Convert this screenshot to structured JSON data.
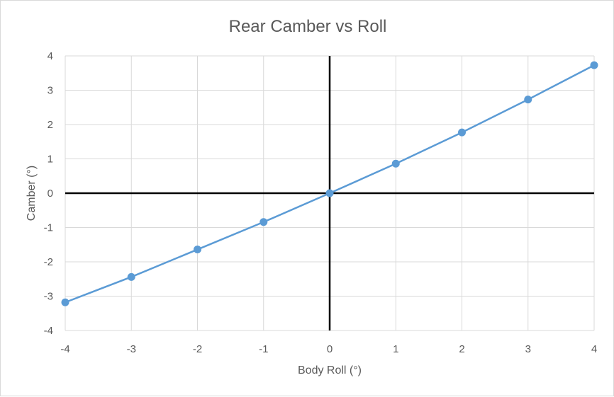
{
  "chart_data": {
    "type": "scatter",
    "title": "Rear Camber vs Roll",
    "xlabel": "Body Roll (°)",
    "ylabel": "Camber (°)",
    "xlim": [
      -4,
      4
    ],
    "ylim": [
      -4,
      4
    ],
    "x_ticks": [
      "-4",
      "-3",
      "-2",
      "-1",
      "0",
      "1",
      "2",
      "3",
      "4"
    ],
    "y_ticks": [
      "-4",
      "-3",
      "-2",
      "-1",
      "0",
      "1",
      "2",
      "3",
      "4"
    ],
    "grid": true,
    "legend": "none",
    "series": [
      {
        "color": "#5b9bd5",
        "x": [
          -4,
          -3,
          -2,
          -1,
          0,
          1,
          2,
          3,
          4
        ],
        "y": [
          -3.18,
          -2.44,
          -1.64,
          -0.84,
          0.0,
          0.86,
          1.77,
          2.73,
          3.73
        ]
      }
    ],
    "zero_axes_color": "#000000",
    "grid_color": "#d9d9d9"
  }
}
